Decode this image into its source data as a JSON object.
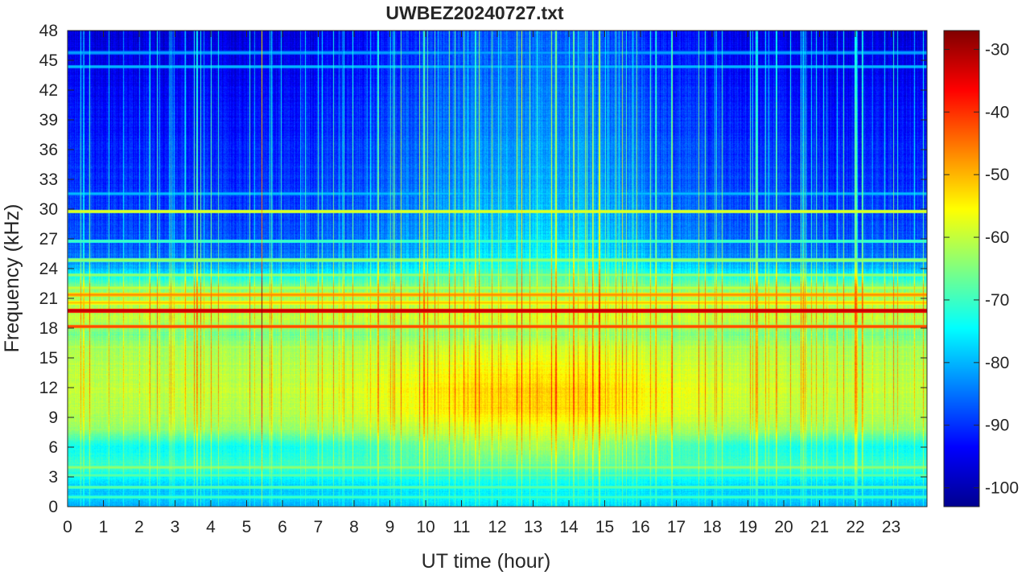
{
  "chart_data": {
    "type": "heatmap",
    "title": "UWBEZ20240727.txt",
    "xlabel": "UT time (hour)",
    "ylabel": "Frequency (kHz)",
    "xlim": [
      0,
      24
    ],
    "ylim": [
      0,
      48
    ],
    "x_ticks": [
      0,
      1,
      2,
      3,
      4,
      5,
      6,
      7,
      8,
      9,
      10,
      11,
      12,
      13,
      14,
      15,
      16,
      17,
      18,
      19,
      20,
      21,
      22,
      23
    ],
    "y_ticks": [
      0,
      3,
      6,
      9,
      12,
      15,
      18,
      21,
      24,
      27,
      30,
      33,
      36,
      39,
      42,
      45,
      48
    ],
    "colorbar": {
      "colormap": "jet",
      "clim": [
        -103,
        -27
      ],
      "ticks": [
        -30,
        -40,
        -50,
        -60,
        -70,
        -80,
        -90,
        -100
      ]
    },
    "colormap_stops": [
      "#00008f",
      "#0000ff",
      "#0080ff",
      "#00ffff",
      "#80ff80",
      "#ffff00",
      "#ff8000",
      "#ff0000",
      "#800000"
    ],
    "background_profile_dB": [
      {
        "f": 0,
        "night": -80,
        "day": -76
      },
      {
        "f": 2,
        "night": -78,
        "day": -74
      },
      {
        "f": 4,
        "night": -70,
        "day": -68
      },
      {
        "f": 6,
        "night": -74,
        "day": -62
      },
      {
        "f": 8,
        "night": -63,
        "day": -57
      },
      {
        "f": 10,
        "night": -61,
        "day": -52
      },
      {
        "f": 12,
        "night": -60,
        "day": -52
      },
      {
        "f": 14,
        "night": -61,
        "day": -55
      },
      {
        "f": 16,
        "night": -62,
        "day": -58
      },
      {
        "f": 17.5,
        "night": -66,
        "day": -63
      },
      {
        "f": 19,
        "night": -60,
        "day": -58
      },
      {
        "f": 20.5,
        "night": -62,
        "day": -60
      },
      {
        "f": 22,
        "night": -64,
        "day": -64
      },
      {
        "f": 23.5,
        "night": -76,
        "day": -68
      },
      {
        "f": 25,
        "night": -85,
        "day": -74
      },
      {
        "f": 27,
        "night": -88,
        "day": -77
      },
      {
        "f": 32,
        "night": -90,
        "day": -80
      },
      {
        "f": 40,
        "night": -93,
        "day": -83
      },
      {
        "f": 48,
        "night": -97,
        "day": -86
      }
    ],
    "narrowband_lines_kHz_dB": [
      {
        "f": 19.8,
        "dB": -30
      },
      {
        "f": 18.2,
        "dB": -40
      },
      {
        "f": 21.4,
        "dB": -46
      },
      {
        "f": 20.6,
        "dB": -50
      },
      {
        "f": 22.1,
        "dB": -58
      },
      {
        "f": 23.4,
        "dB": -62
      },
      {
        "f": 24.9,
        "dB": -62
      },
      {
        "f": 16.1,
        "dB": -60
      },
      {
        "f": 7.8,
        "dB": -62
      },
      {
        "f": 4.0,
        "dB": -62
      },
      {
        "f": 3.2,
        "dB": -66
      },
      {
        "f": 2.0,
        "dB": -66
      },
      {
        "f": 1.0,
        "dB": -68
      },
      {
        "f": 31.6,
        "dB": -78
      },
      {
        "f": 44.4,
        "dB": -78
      },
      {
        "f": 45.8,
        "dB": -80
      },
      {
        "f": 29.8,
        "dB": -56
      },
      {
        "f": 26.8,
        "dB": -68
      }
    ]
  }
}
